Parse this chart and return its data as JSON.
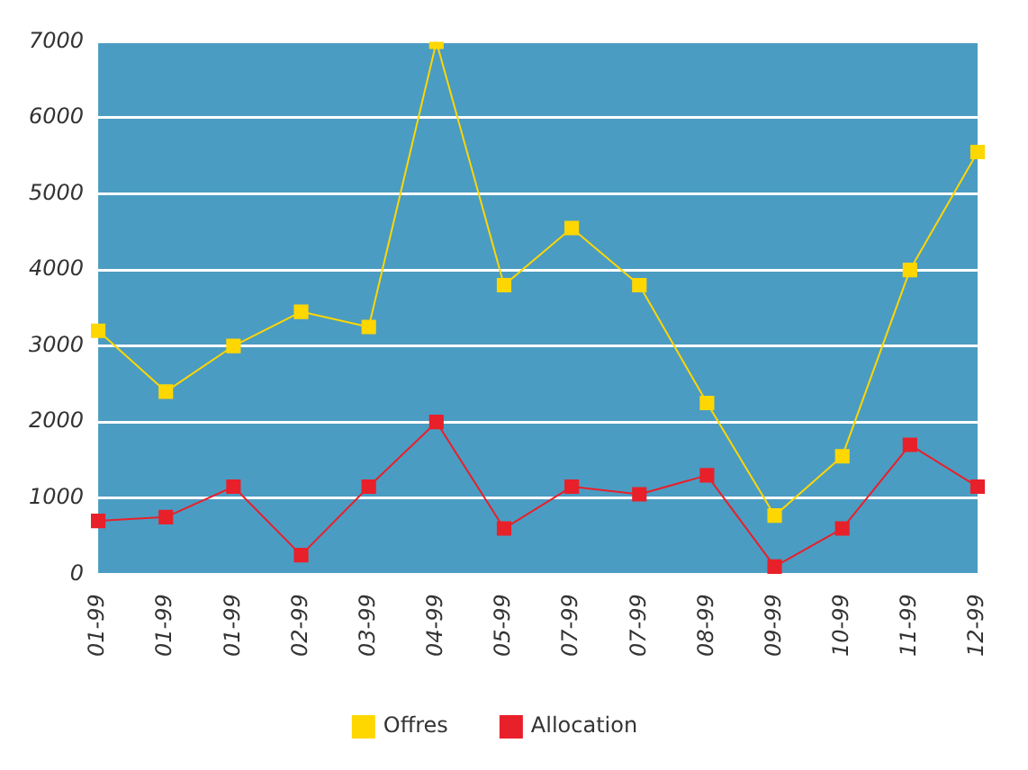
{
  "chart_data": {
    "type": "line",
    "categories": [
      "01-99",
      "01-99",
      "01-99",
      "02-99",
      "03-99",
      "04-99",
      "05-99",
      "07-99",
      "07-99",
      "08-99",
      "09-99",
      "10-99",
      "11-99",
      "12-99"
    ],
    "series": [
      {
        "name": "Offres",
        "color": "#ffd700",
        "values": [
          3200,
          2400,
          3000,
          3450,
          3250,
          7000,
          3800,
          4550,
          3800,
          2250,
          770,
          1550,
          4000,
          5550
        ]
      },
      {
        "name": "Allocation",
        "color": "#e8202a",
        "values": [
          700,
          750,
          1150,
          250,
          1150,
          2000,
          600,
          1150,
          1050,
          1300,
          100,
          600,
          1700,
          1150
        ]
      }
    ],
    "ylim": [
      0,
      7000
    ],
    "yticks": [
      0,
      1000,
      2000,
      3000,
      4000,
      5000,
      6000,
      7000
    ],
    "grid": "y",
    "legend": "bottom",
    "marker": "square",
    "line_style": "solid"
  }
}
